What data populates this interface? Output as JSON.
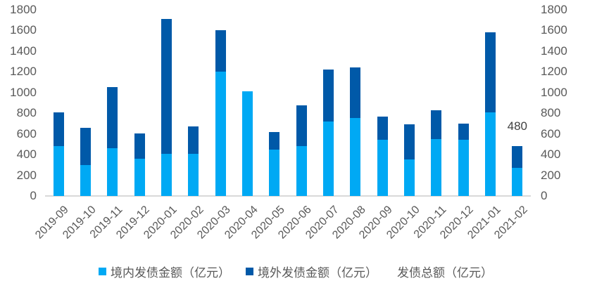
{
  "chart_data": {
    "type": "bar",
    "stacked": true,
    "title": "",
    "xlabel": "",
    "ylabel": "",
    "ylim": [
      0,
      1800
    ],
    "yticks": [
      0,
      200,
      400,
      600,
      800,
      1000,
      1200,
      1400,
      1600,
      1800
    ],
    "secondary_ylim": [
      0,
      1800
    ],
    "grid": false,
    "legend_position": "bottom",
    "categories": [
      "2019-09",
      "2019-10",
      "2019-11",
      "2019-12",
      "2020-01",
      "2020-02",
      "2020-03",
      "2020-04",
      "2020-05",
      "2020-06",
      "2020-07",
      "2020-08",
      "2020-09",
      "2020-10",
      "2020-11",
      "2020-12",
      "2021-01",
      "2021-02"
    ],
    "series": [
      {
        "name": "境内发债金额（亿元）",
        "color": "#00A9F4",
        "values": [
          480,
          300,
          465,
          360,
          410,
          410,
          1205,
          1010,
          450,
          485,
          720,
          755,
          545,
          355,
          550,
          540,
          810,
          275
        ]
      },
      {
        "name": "境外发债金额（亿元）",
        "color": "#0059A8",
        "values": [
          330,
          360,
          590,
          245,
          1305,
          260,
          395,
          0,
          165,
          390,
          505,
          485,
          225,
          335,
          280,
          160,
          775,
          205
        ]
      },
      {
        "name": "发债总额（亿元）",
        "type": "line",
        "visible": false,
        "values": [
          810,
          660,
          1055,
          605,
          1715,
          670,
          1600,
          1010,
          615,
          875,
          1225,
          1240,
          770,
          690,
          830,
          700,
          1585,
          480
        ]
      }
    ],
    "annotations": [
      {
        "category": "2021-02",
        "text": "480"
      }
    ]
  },
  "legend": {
    "items": [
      {
        "label": "境内发债金额（亿元）",
        "color": "#00A9F4",
        "marker": true
      },
      {
        "label": "境外发债金额（亿元）",
        "color": "#0059A8",
        "marker": true
      },
      {
        "label": "发债总额（亿元）",
        "marker": false
      }
    ]
  }
}
